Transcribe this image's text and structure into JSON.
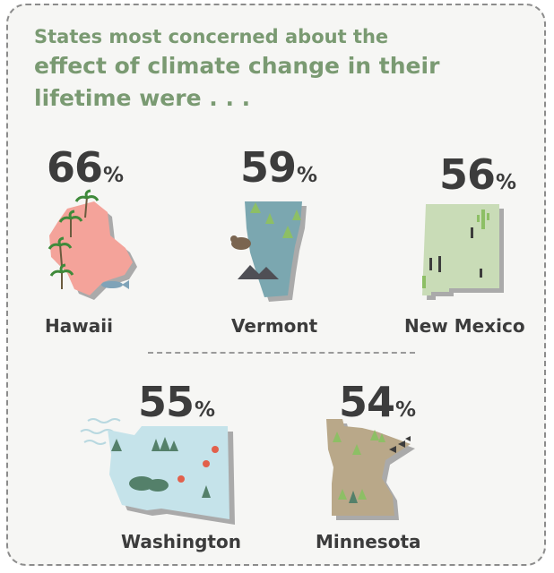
{
  "heading": {
    "line1": "States most concerned about the",
    "line2": "effect of climate change in their",
    "line3": "lifetime were . . ."
  },
  "states": [
    {
      "name": "Hawaii",
      "value": "66",
      "unit": "%",
      "color": "#f4a39a"
    },
    {
      "name": "Vermont",
      "value": "59",
      "unit": "%",
      "color": "#7ba7b0"
    },
    {
      "name": "New Mexico",
      "value": "56",
      "unit": "%",
      "color": "#c9dcb7"
    },
    {
      "name": "Washington",
      "value": "55",
      "unit": "%",
      "color": "#c5e3ea"
    },
    {
      "name": "Minnesota",
      "value": "54",
      "unit": "%",
      "color": "#b9a889"
    }
  ],
  "icons": [
    "palm-tree-icon",
    "whale-icon",
    "pine-tree-icon",
    "bear-icon",
    "cactus-icon",
    "apple-icon",
    "wave-icon"
  ]
}
